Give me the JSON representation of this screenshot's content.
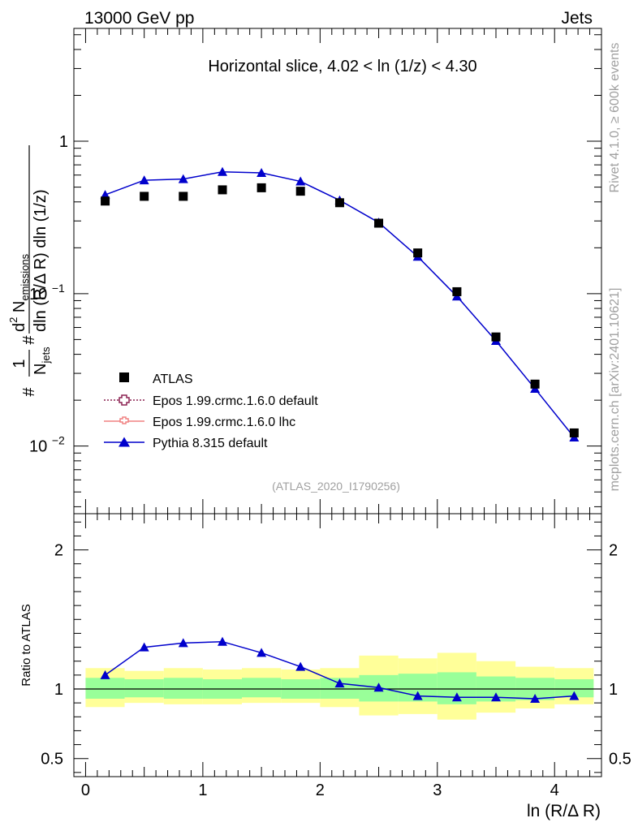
{
  "header": {
    "left": "13000 GeV pp",
    "right": "Jets"
  },
  "side_labels": {
    "rivet": "Rivet 4.1.0, ≥ 600k events",
    "mcplots": "mcplots.cern.ch [arXiv:2401.10621]"
  },
  "chart_data": [
    {
      "type": "scatter",
      "title": "Horizontal slice, 4.02 < ln (1/z) < 4.30",
      "analysis_id": "(ATLAS_2020_I1790256)",
      "yscale": "log",
      "xlim": [
        -0.1,
        4.4
      ],
      "ylim": [
        0.0036,
        5.5
      ],
      "xlabel": "ln (R/Δ R)",
      "ylabel": {
        "prefix": "#",
        "frac1_num": "1",
        "frac1_den_main": "N",
        "frac1_den_sub": "jets",
        "frac2_num_main": "d",
        "frac2_num_sup": "2",
        "frac2_num_rest": " N",
        "frac2_num_sub": "emissions",
        "frac2_den": "dln (R/Δ R) dln (1/z)"
      },
      "yticks": [
        {
          "value": 1,
          "label": "1"
        },
        {
          "value": 0.1,
          "base": "10",
          "exp": "−1"
        },
        {
          "value": 0.01,
          "base": "10",
          "exp": "−2"
        }
      ],
      "x": [
        0.167,
        0.5,
        0.833,
        1.167,
        1.5,
        1.833,
        2.167,
        2.5,
        2.833,
        3.167,
        3.5,
        3.833,
        4.167
      ],
      "series": [
        {
          "name": "ATLAS",
          "marker": "square",
          "color": "#000000",
          "values": [
            0.405,
            0.435,
            0.435,
            0.48,
            0.495,
            0.47,
            0.395,
            0.29,
            0.185,
            0.103,
            0.052,
            0.0255,
            0.0122
          ]
        },
        {
          "name": "Epos 1.99.crmc.1.6.0 default",
          "marker": "open-cross",
          "color": "#8b2252",
          "line": "dotted",
          "values": []
        },
        {
          "name": "Epos 1.99.crmc.1.6.0 lhc",
          "marker": "open-cross-small",
          "color": "#f08080",
          "line": "solid",
          "values": []
        },
        {
          "name": "Pythia 8.315 default",
          "marker": "triangle",
          "color": "#0000cc",
          "line": "solid",
          "values": [
            0.445,
            0.555,
            0.565,
            0.63,
            0.62,
            0.545,
            0.41,
            0.293,
            0.175,
            0.096,
            0.049,
            0.0238,
            0.0114
          ]
        }
      ]
    },
    {
      "type": "line",
      "title": "",
      "ylabel": "Ratio to ATLAS",
      "xlabel": "ln (R/Δ R)",
      "xlim": [
        -0.1,
        4.4
      ],
      "ylim": [
        0.37,
        2.26
      ],
      "xticks": [
        0,
        1,
        2,
        3,
        4
      ],
      "yticks": [
        0.5,
        1,
        2
      ],
      "x_edges": [
        0,
        0.333,
        0.667,
        1.0,
        1.333,
        1.667,
        2.0,
        2.333,
        2.667,
        3.0,
        3.333,
        3.667,
        4.0,
        4.333
      ],
      "band_yellow": [
        [
          0.87,
          1.15
        ],
        [
          0.9,
          1.13
        ],
        [
          0.89,
          1.15
        ],
        [
          0.89,
          1.14
        ],
        [
          0.9,
          1.15
        ],
        [
          0.9,
          1.14
        ],
        [
          0.87,
          1.15
        ],
        [
          0.81,
          1.24
        ],
        [
          0.82,
          1.22
        ],
        [
          0.78,
          1.26
        ],
        [
          0.83,
          1.2
        ],
        [
          0.86,
          1.16
        ],
        [
          0.89,
          1.15
        ]
      ],
      "band_green": [
        [
          0.93,
          1.08
        ],
        [
          0.94,
          1.07
        ],
        [
          0.93,
          1.08
        ],
        [
          0.93,
          1.07
        ],
        [
          0.94,
          1.08
        ],
        [
          0.93,
          1.07
        ],
        [
          0.93,
          1.08
        ],
        [
          0.91,
          1.1
        ],
        [
          0.91,
          1.11
        ],
        [
          0.89,
          1.12
        ],
        [
          0.91,
          1.09
        ],
        [
          0.92,
          1.08
        ],
        [
          0.94,
          1.07
        ]
      ],
      "series": [
        {
          "name": "Pythia 8.315 default",
          "color": "#0000cc",
          "values": [
            1.1,
            1.3,
            1.33,
            1.34,
            1.26,
            1.16,
            1.04,
            1.01,
            0.95,
            0.94,
            0.94,
            0.93,
            0.95
          ]
        }
      ]
    }
  ]
}
